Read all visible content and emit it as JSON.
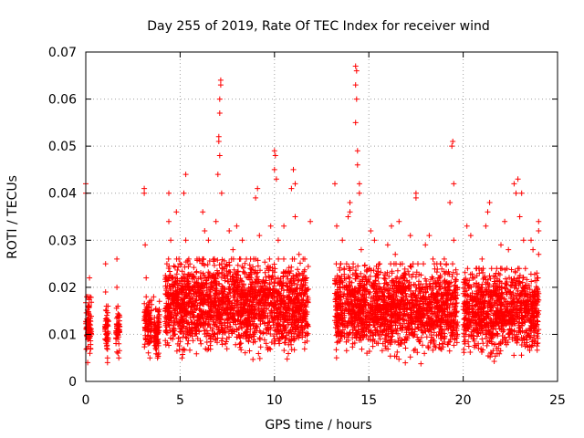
{
  "chart_data": {
    "type": "scatter",
    "title": "Day 255 of 2019, Rate Of TEC Index for receiver wind",
    "xlabel": "GPS time / hours",
    "ylabel": "ROTI / TECUs",
    "xlim": [
      0,
      25
    ],
    "ylim": [
      0,
      0.07
    ],
    "x_ticks": [
      0,
      5,
      10,
      15,
      20,
      25
    ],
    "y_ticks": [
      0,
      0.01,
      0.02,
      0.03,
      0.04,
      0.05,
      0.06,
      0.07
    ],
    "x_tick_labels": [
      "0",
      "5",
      "10",
      "15",
      "20",
      "25"
    ],
    "y_tick_labels": [
      "0",
      "0.01",
      "0.02",
      "0.03",
      "0.04",
      "0.05",
      "0.06",
      "0.07"
    ],
    "grid": true,
    "marker": "+",
    "color": "#ff0000",
    "series": [
      {
        "name": "ROTI",
        "points": [
          [
            0.0,
            0.042
          ],
          [
            0.0,
            0.04
          ],
          [
            0.05,
            0.018
          ],
          [
            0.1,
            0.013
          ],
          [
            0.1,
            0.009
          ],
          [
            0.1,
            0.004
          ],
          [
            0.15,
            0.016
          ],
          [
            0.2,
            0.022
          ],
          [
            0.2,
            0.011
          ],
          [
            0.25,
            0.007
          ],
          [
            1.05,
            0.025
          ],
          [
            1.05,
            0.019
          ],
          [
            1.1,
            0.015
          ],
          [
            1.1,
            0.01
          ],
          [
            1.15,
            0.005
          ],
          [
            1.15,
            0.004
          ],
          [
            1.65,
            0.026
          ],
          [
            1.65,
            0.02
          ],
          [
            1.7,
            0.016
          ],
          [
            1.7,
            0.012
          ],
          [
            1.75,
            0.008
          ],
          [
            1.75,
            0.005
          ],
          [
            3.1,
            0.041
          ],
          [
            3.1,
            0.04
          ],
          [
            3.15,
            0.029
          ],
          [
            3.2,
            0.022
          ],
          [
            3.2,
            0.014
          ],
          [
            3.3,
            0.008
          ],
          [
            3.4,
            0.005
          ],
          [
            3.6,
            0.018
          ],
          [
            3.7,
            0.012
          ],
          [
            3.7,
            0.007
          ],
          [
            3.8,
            0.005
          ],
          [
            3.9,
            0.017
          ],
          [
            4.3,
            0.025
          ],
          [
            4.4,
            0.034
          ],
          [
            4.4,
            0.04
          ],
          [
            4.5,
            0.03
          ],
          [
            4.6,
            0.022
          ],
          [
            4.6,
            0.009
          ],
          [
            4.8,
            0.036
          ],
          [
            4.9,
            0.012
          ],
          [
            5.1,
            0.005
          ],
          [
            5.2,
            0.04
          ],
          [
            5.3,
            0.044
          ],
          [
            5.3,
            0.03
          ],
          [
            5.4,
            0.02
          ],
          [
            5.4,
            0.008
          ],
          [
            5.6,
            0.016
          ],
          [
            5.8,
            0.012
          ],
          [
            6.0,
            0.026
          ],
          [
            6.2,
            0.036
          ],
          [
            6.3,
            0.032
          ],
          [
            6.5,
            0.018
          ],
          [
            6.5,
            0.03
          ],
          [
            6.6,
            0.009
          ],
          [
            6.8,
            0.022
          ],
          [
            6.9,
            0.034
          ],
          [
            7.0,
            0.044
          ],
          [
            7.05,
            0.051
          ],
          [
            7.05,
            0.052
          ],
          [
            7.1,
            0.057
          ],
          [
            7.1,
            0.06
          ],
          [
            7.15,
            0.063
          ],
          [
            7.15,
            0.064
          ],
          [
            7.1,
            0.048
          ],
          [
            7.2,
            0.04
          ],
          [
            7.2,
            0.025
          ],
          [
            7.3,
            0.015
          ],
          [
            7.4,
            0.008
          ],
          [
            7.6,
            0.032
          ],
          [
            7.8,
            0.028
          ],
          [
            8.0,
            0.033
          ],
          [
            8.0,
            0.022
          ],
          [
            8.1,
            0.014
          ],
          [
            8.3,
            0.03
          ],
          [
            8.5,
            0.018
          ],
          [
            8.7,
            0.01
          ],
          [
            8.9,
            0.026
          ],
          [
            9.0,
            0.039
          ],
          [
            9.1,
            0.041
          ],
          [
            9.2,
            0.031
          ],
          [
            9.4,
            0.015
          ],
          [
            9.6,
            0.024
          ],
          [
            9.8,
            0.033
          ],
          [
            10.0,
            0.049
          ],
          [
            10.0,
            0.045
          ],
          [
            10.05,
            0.048
          ],
          [
            10.1,
            0.043
          ],
          [
            10.2,
            0.03
          ],
          [
            10.3,
            0.012
          ],
          [
            10.5,
            0.033
          ],
          [
            10.7,
            0.02
          ],
          [
            10.9,
            0.041
          ],
          [
            11.0,
            0.045
          ],
          [
            11.1,
            0.035
          ],
          [
            11.1,
            0.042
          ],
          [
            11.3,
            0.027
          ],
          [
            11.5,
            0.014
          ],
          [
            11.7,
            0.022
          ],
          [
            11.9,
            0.034
          ],
          [
            13.2,
            0.042
          ],
          [
            13.3,
            0.033
          ],
          [
            13.4,
            0.018
          ],
          [
            13.5,
            0.009
          ],
          [
            13.6,
            0.03
          ],
          [
            13.7,
            0.024
          ],
          [
            13.9,
            0.035
          ],
          [
            14.0,
            0.038
          ],
          [
            14.0,
            0.036
          ],
          [
            14.1,
            0.021
          ],
          [
            14.15,
            0.008
          ],
          [
            14.3,
            0.067
          ],
          [
            14.3,
            0.063
          ],
          [
            14.35,
            0.066
          ],
          [
            14.35,
            0.06
          ],
          [
            14.3,
            0.055
          ],
          [
            14.4,
            0.049
          ],
          [
            14.4,
            0.046
          ],
          [
            14.5,
            0.042
          ],
          [
            14.5,
            0.04
          ],
          [
            14.6,
            0.028
          ],
          [
            14.7,
            0.02
          ],
          [
            14.8,
            0.012
          ],
          [
            14.9,
            0.006
          ],
          [
            15.1,
            0.032
          ],
          [
            15.3,
            0.03
          ],
          [
            15.5,
            0.024
          ],
          [
            15.6,
            0.016
          ],
          [
            15.8,
            0.011
          ],
          [
            16.0,
            0.029
          ],
          [
            16.2,
            0.033
          ],
          [
            16.4,
            0.027
          ],
          [
            16.6,
            0.034
          ],
          [
            16.7,
            0.019
          ],
          [
            16.9,
            0.009
          ],
          [
            17.2,
            0.031
          ],
          [
            17.5,
            0.04
          ],
          [
            17.5,
            0.039
          ],
          [
            17.6,
            0.025
          ],
          [
            17.8,
            0.015
          ],
          [
            18.0,
            0.029
          ],
          [
            18.2,
            0.031
          ],
          [
            18.4,
            0.026
          ],
          [
            18.6,
            0.012
          ],
          [
            18.8,
            0.021
          ],
          [
            19.0,
            0.026
          ],
          [
            19.3,
            0.038
          ],
          [
            19.4,
            0.05
          ],
          [
            19.45,
            0.051
          ],
          [
            19.5,
            0.042
          ],
          [
            19.5,
            0.03
          ],
          [
            19.6,
            0.016
          ],
          [
            19.7,
            0.01
          ],
          [
            20.2,
            0.033
          ],
          [
            20.4,
            0.031
          ],
          [
            20.5,
            0.022
          ],
          [
            20.6,
            0.014
          ],
          [
            20.8,
            0.008
          ],
          [
            21.0,
            0.026
          ],
          [
            21.2,
            0.033
          ],
          [
            21.3,
            0.036
          ],
          [
            21.4,
            0.038
          ],
          [
            21.5,
            0.019
          ],
          [
            21.6,
            0.012
          ],
          [
            22.0,
            0.029
          ],
          [
            22.2,
            0.034
          ],
          [
            22.4,
            0.028
          ],
          [
            22.6,
            0.013
          ],
          [
            22.7,
            0.042
          ],
          [
            22.8,
            0.04
          ],
          [
            22.9,
            0.043
          ],
          [
            23.0,
            0.035
          ],
          [
            23.1,
            0.04
          ],
          [
            23.2,
            0.03
          ],
          [
            23.3,
            0.024
          ],
          [
            23.4,
            0.016
          ],
          [
            23.5,
            0.011
          ],
          [
            23.6,
            0.03
          ],
          [
            23.7,
            0.028
          ],
          [
            23.8,
            0.018
          ],
          [
            23.9,
            0.012
          ],
          [
            24.0,
            0.032
          ],
          [
            24.0,
            0.034
          ],
          [
            24.0,
            0.027
          ],
          [
            24.0,
            0.015
          ]
        ],
        "dense_bands": [
          {
            "x_start": 0.0,
            "x_end": 0.3,
            "y_min": 0.004,
            "y_max": 0.018
          },
          {
            "x_start": 1.0,
            "x_end": 1.2,
            "y_min": 0.004,
            "y_max": 0.016
          },
          {
            "x_start": 1.6,
            "x_end": 1.8,
            "y_min": 0.005,
            "y_max": 0.016
          },
          {
            "x_start": 3.1,
            "x_end": 3.5,
            "y_min": 0.005,
            "y_max": 0.018
          },
          {
            "x_start": 3.6,
            "x_end": 3.9,
            "y_min": 0.004,
            "y_max": 0.016
          },
          {
            "x_start": 4.2,
            "x_end": 11.8,
            "y_min": 0.003,
            "y_max": 0.026
          },
          {
            "x_start": 13.2,
            "x_end": 19.7,
            "y_min": 0.003,
            "y_max": 0.025
          },
          {
            "x_start": 20.0,
            "x_end": 24.0,
            "y_min": 0.003,
            "y_max": 0.024
          }
        ]
      }
    ]
  }
}
